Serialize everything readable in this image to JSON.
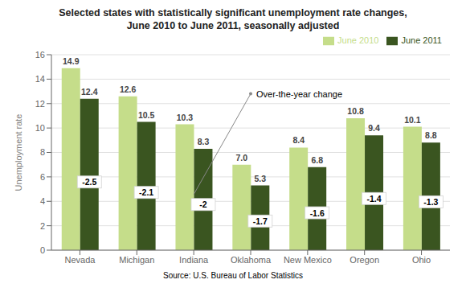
{
  "chart_data": {
    "type": "bar",
    "title": "Selected states with statistically significant unemployment rate changes,\nJune 2010 to June 2011, seasonally adjusted",
    "categories": [
      "Nevada",
      "Michigan",
      "Indiana",
      "Oklahoma",
      "New Mexico",
      "Oregon",
      "Ohio"
    ],
    "series": [
      {
        "name": "June 2010",
        "color": "#c5dd8a",
        "values": [
          14.9,
          12.6,
          10.3,
          7.0,
          8.4,
          10.8,
          10.1
        ],
        "value_labels": [
          "14.9",
          "12.6",
          "10.3",
          "7.0",
          "8.4",
          "10.8",
          "10.1"
        ]
      },
      {
        "name": "June 2011",
        "color": "#3a5520",
        "values": [
          12.4,
          10.5,
          8.3,
          5.3,
          6.8,
          9.4,
          8.8
        ],
        "changes": [
          -2.5,
          -2.1,
          -2.0,
          -1.7,
          -1.6,
          -1.4,
          -1.3
        ]
      }
    ],
    "y_label": "Unemployment rate",
    "ylim": [
      0,
      16
    ],
    "yticks": [
      0,
      2,
      4,
      6,
      8,
      10,
      12,
      14,
      16
    ],
    "grid": true,
    "legend": "upper right",
    "data_labels": true,
    "annotation": "Over-the-year change",
    "source": "Source: U.S. Bureau of Labor Statistics"
  }
}
